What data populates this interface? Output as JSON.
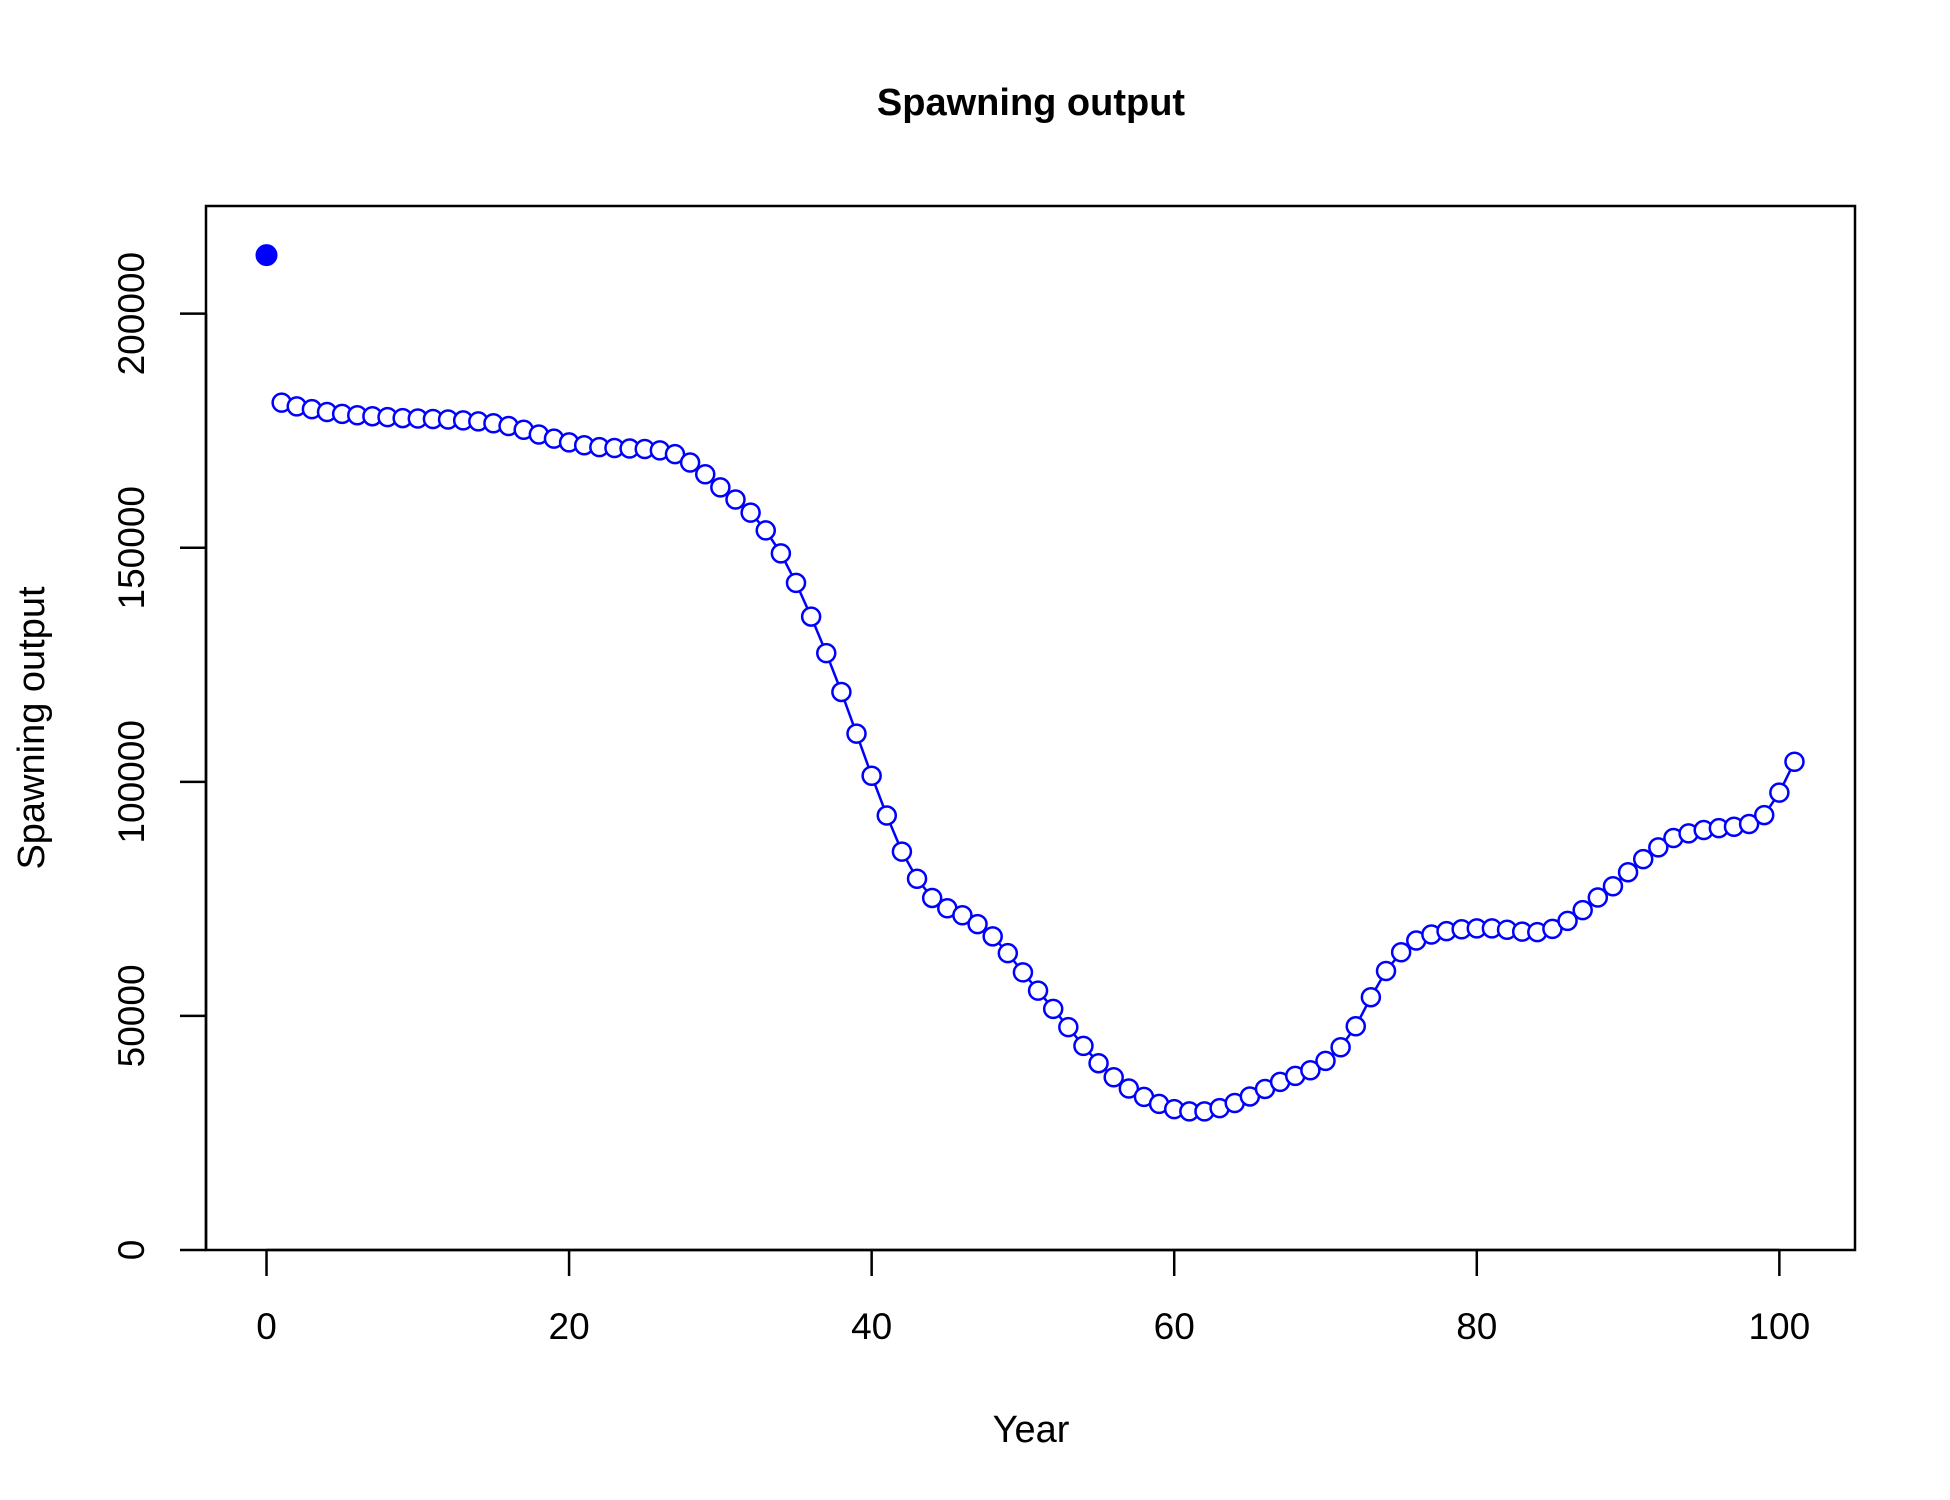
{
  "chart_data": {
    "type": "line",
    "title": "Spawning output",
    "xlabel": "Year",
    "ylabel": "Spawning output",
    "xlim": [
      -4,
      105
    ],
    "ylim": [
      0,
      223000
    ],
    "x_ticks": [
      0,
      20,
      40,
      60,
      80,
      100
    ],
    "y_ticks": [
      0,
      50000,
      100000,
      150000,
      200000
    ],
    "x_tick_labels": [
      "0",
      "20",
      "40",
      "60",
      "80",
      "100"
    ],
    "y_tick_labels": [
      "0",
      "50000",
      "100000",
      "150000",
      "200000"
    ],
    "grid": false,
    "legend": "none",
    "colors": {
      "series": "#0000ff",
      "axis": "#000000"
    },
    "virgin_point": {
      "x": 0,
      "y": 212500
    },
    "series": [
      {
        "marker": "open-circle",
        "x": [
          1,
          2,
          3,
          4,
          5,
          6,
          7,
          8,
          9,
          10,
          11,
          12,
          13,
          14,
          15,
          16,
          17,
          18,
          19,
          20,
          21,
          22,
          23,
          24,
          25,
          26,
          27,
          28,
          29,
          30,
          31,
          32,
          33,
          34,
          35,
          36,
          37,
          38,
          39,
          40,
          41,
          42,
          43,
          44,
          45,
          46,
          47,
          48,
          49,
          50,
          51,
          52,
          53,
          54,
          55,
          56,
          57,
          58,
          59,
          60,
          61,
          62,
          63,
          64,
          65,
          66,
          67,
          68,
          69,
          70,
          71,
          72,
          73,
          74,
          75,
          76,
          77,
          78,
          79,
          80,
          81,
          82,
          83,
          84,
          85,
          86,
          87,
          88,
          89,
          90,
          91,
          92,
          93,
          94,
          95,
          96,
          97,
          98,
          99,
          100,
          101
        ],
        "values": [
          181000,
          180200,
          179600,
          179000,
          178600,
          178300,
          178100,
          177900,
          177700,
          177600,
          177500,
          177400,
          177200,
          177000,
          176600,
          176000,
          175200,
          174200,
          173300,
          172500,
          171900,
          171500,
          171300,
          171200,
          171100,
          170800,
          170000,
          168200,
          165700,
          162900,
          160300,
          157500,
          153700,
          148800,
          142500,
          135300,
          127500,
          119200,
          110300,
          101300,
          92800,
          85100,
          79300,
          75200,
          73000,
          71500,
          69600,
          67000,
          63400,
          59300,
          55400,
          51500,
          47600,
          43600,
          39900,
          36900,
          34500,
          32700,
          31200,
          30100,
          29600,
          29600,
          30300,
          31400,
          32800,
          34400,
          35900,
          37200,
          38400,
          40400,
          43300,
          47800,
          54000,
          59600,
          63600,
          66100,
          67400,
          68100,
          68500,
          68700,
          68700,
          68400,
          68000,
          67900,
          68600,
          70300,
          72600,
          75300,
          77700,
          80700,
          83500,
          86000,
          88000,
          89000,
          89700,
          90100,
          90400,
          91000,
          92900,
          97700,
          104300
        ]
      }
    ]
  }
}
